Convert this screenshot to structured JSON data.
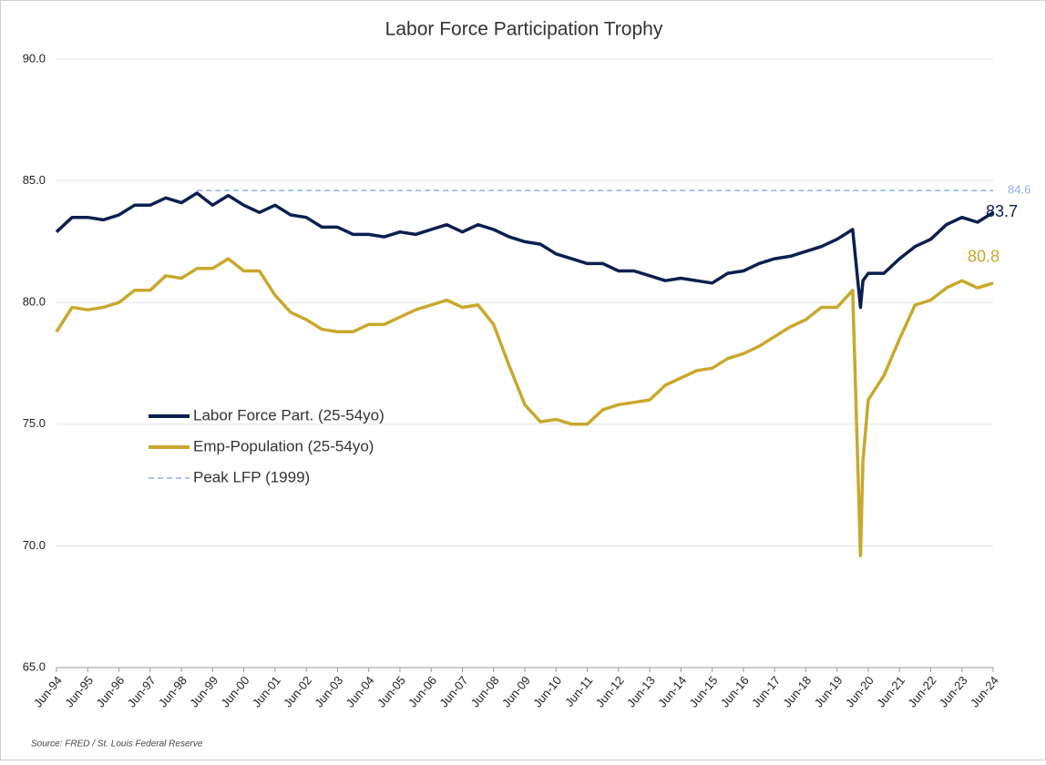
{
  "chart_data": {
    "type": "line",
    "title": "Labor Force Participation Trophy",
    "source": "Source: FRED / St. Louis Federal Reserve",
    "xlim": [
      1994.5,
      2024.5
    ],
    "ylim": [
      65,
      90
    ],
    "yticks": [
      {
        "value": 65,
        "label": "65.0"
      },
      {
        "value": 70,
        "label": "70.0"
      },
      {
        "value": 75,
        "label": "75.0"
      },
      {
        "value": 80,
        "label": "80.0"
      },
      {
        "value": 85,
        "label": "85.0"
      },
      {
        "value": 90,
        "label": "90.0"
      }
    ],
    "xticks": [
      {
        "value": 1994.5,
        "label": "Jun-94"
      },
      {
        "value": 1995.5,
        "label": "Jun-95"
      },
      {
        "value": 1996.5,
        "label": "Jun-96"
      },
      {
        "value": 1997.5,
        "label": "Jun-97"
      },
      {
        "value": 1998.5,
        "label": "Jun-98"
      },
      {
        "value": 1999.5,
        "label": "Jun-99"
      },
      {
        "value": 2000.5,
        "label": "Jun-00"
      },
      {
        "value": 2001.5,
        "label": "Jun-01"
      },
      {
        "value": 2002.5,
        "label": "Jun-02"
      },
      {
        "value": 2003.5,
        "label": "Jun-03"
      },
      {
        "value": 2004.5,
        "label": "Jun-04"
      },
      {
        "value": 2005.5,
        "label": "Jun-05"
      },
      {
        "value": 2006.5,
        "label": "Jun-06"
      },
      {
        "value": 2007.5,
        "label": "Jun-07"
      },
      {
        "value": 2008.5,
        "label": "Jun-08"
      },
      {
        "value": 2009.5,
        "label": "Jun-09"
      },
      {
        "value": 2010.5,
        "label": "Jun-10"
      },
      {
        "value": 2011.5,
        "label": "Jun-11"
      },
      {
        "value": 2012.5,
        "label": "Jun-12"
      },
      {
        "value": 2013.5,
        "label": "Jun-13"
      },
      {
        "value": 2014.5,
        "label": "Jun-14"
      },
      {
        "value": 2015.5,
        "label": "Jun-15"
      },
      {
        "value": 2016.5,
        "label": "Jun-16"
      },
      {
        "value": 2017.5,
        "label": "Jun-17"
      },
      {
        "value": 2018.5,
        "label": "Jun-18"
      },
      {
        "value": 2019.5,
        "label": "Jun-19"
      },
      {
        "value": 2020.5,
        "label": "Jun-20"
      },
      {
        "value": 2021.5,
        "label": "Jun-21"
      },
      {
        "value": 2022.5,
        "label": "Jun-22"
      },
      {
        "value": 2023.5,
        "label": "Jun-23"
      },
      {
        "value": 2024.5,
        "label": "Jun-24"
      }
    ],
    "grid": true,
    "series": [
      {
        "name": "Labor Force Part. (25-54yo)",
        "color": "#0b1f4f",
        "dashed": false,
        "end_label": true,
        "x": [
          1994.5,
          1995,
          1995.5,
          1996,
          1996.5,
          1997,
          1997.5,
          1998,
          1998.5,
          1999,
          1999.5,
          2000,
          2000.5,
          2001,
          2001.5,
          2002,
          2002.5,
          2003,
          2003.5,
          2004,
          2004.5,
          2005,
          2005.5,
          2006,
          2006.5,
          2007,
          2007.5,
          2008,
          2008.5,
          2009,
          2009.5,
          2010,
          2010.5,
          2011,
          2011.5,
          2012,
          2012.5,
          2013,
          2013.5,
          2014,
          2014.5,
          2015,
          2015.5,
          2016,
          2016.5,
          2017,
          2017.5,
          2018,
          2018.5,
          2019,
          2019.5,
          2020,
          2020.25,
          2020.33,
          2020.5,
          2021,
          2021.5,
          2022,
          2022.5,
          2023,
          2023.5,
          2024,
          2024.5
        ],
        "values": [
          82.9,
          83.5,
          83.5,
          83.4,
          83.6,
          84.0,
          84.0,
          84.3,
          84.1,
          84.5,
          84.0,
          84.4,
          84.0,
          83.7,
          84.0,
          83.6,
          83.5,
          83.1,
          83.1,
          82.8,
          82.8,
          82.7,
          82.9,
          82.8,
          83.0,
          83.2,
          82.9,
          83.2,
          83.0,
          82.7,
          82.5,
          82.4,
          82.0,
          81.8,
          81.6,
          81.6,
          81.3,
          81.3,
          81.1,
          80.9,
          81.0,
          80.9,
          80.8,
          81.2,
          81.3,
          81.6,
          81.8,
          81.9,
          82.1,
          82.3,
          82.6,
          83.0,
          79.8,
          80.9,
          81.2,
          81.2,
          81.8,
          82.3,
          82.6,
          83.2,
          83.5,
          83.3,
          83.7
        ]
      },
      {
        "name": "Emp-Population (25-54yo)",
        "color": "#c9a82c",
        "dashed": false,
        "end_label": true,
        "x": [
          1994.5,
          1995,
          1995.5,
          1996,
          1996.5,
          1997,
          1997.5,
          1998,
          1998.5,
          1999,
          1999.5,
          2000,
          2000.5,
          2001,
          2001.5,
          2002,
          2002.5,
          2003,
          2003.5,
          2004,
          2004.5,
          2005,
          2005.5,
          2006,
          2006.5,
          2007,
          2007.5,
          2008,
          2008.5,
          2009,
          2009.5,
          2010,
          2010.5,
          2011,
          2011.5,
          2012,
          2012.5,
          2013,
          2013.5,
          2014,
          2014.5,
          2015,
          2015.5,
          2016,
          2016.5,
          2017,
          2017.5,
          2018,
          2018.5,
          2019,
          2019.5,
          2020,
          2020.25,
          2020.33,
          2020.5,
          2021,
          2021.5,
          2022,
          2022.5,
          2023,
          2023.5,
          2024,
          2024.5
        ],
        "values": [
          78.8,
          79.8,
          79.7,
          79.8,
          80.0,
          80.5,
          80.5,
          81.1,
          81.0,
          81.4,
          81.4,
          81.8,
          81.3,
          81.3,
          80.3,
          79.6,
          79.3,
          78.9,
          78.8,
          78.8,
          79.1,
          79.1,
          79.4,
          79.7,
          79.9,
          80.1,
          79.8,
          79.9,
          79.1,
          77.4,
          75.8,
          75.1,
          75.2,
          75.0,
          75.0,
          75.6,
          75.8,
          75.9,
          76.0,
          76.6,
          76.9,
          77.2,
          77.3,
          77.7,
          77.9,
          78.2,
          78.6,
          79.0,
          79.3,
          79.8,
          79.8,
          80.5,
          69.6,
          73.5,
          76.0,
          77.0,
          78.5,
          79.9,
          80.1,
          80.6,
          80.9,
          80.6,
          80.8
        ]
      },
      {
        "name": "Peak LFP (1999)",
        "color": "#8fb0e8",
        "dashed": true,
        "end_label": true,
        "x": [
          1999.0,
          2024.5
        ],
        "values": [
          84.6,
          84.6
        ]
      }
    ]
  }
}
